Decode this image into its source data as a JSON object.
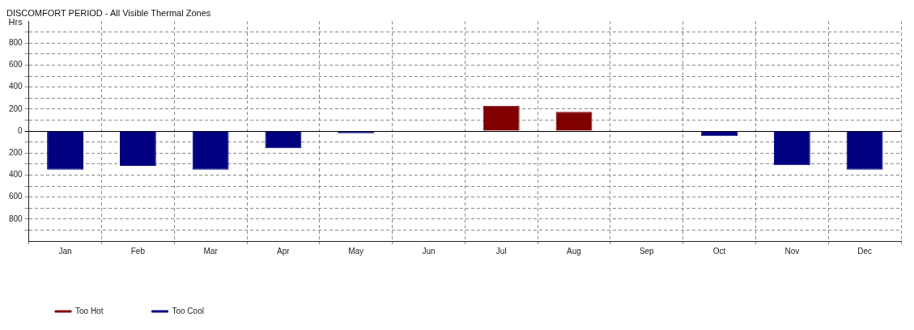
{
  "chart_data": {
    "type": "bar",
    "title": "DISCOMFORT PERIOD - All Visible Thermal Zones",
    "ylabel": "Hrs",
    "categories": [
      "Jan",
      "Feb",
      "Mar",
      "Apr",
      "May",
      "Jun",
      "Jul",
      "Aug",
      "Sep",
      "Oct",
      "Nov",
      "Dec"
    ],
    "series": [
      {
        "name": "Too Hot",
        "color": "#800000",
        "values": [
          null,
          null,
          null,
          null,
          null,
          null,
          230,
          175,
          null,
          null,
          null,
          null
        ]
      },
      {
        "name": "Too Cool",
        "color": "#000080",
        "values": [
          -350,
          -315,
          -350,
          -155,
          -20,
          null,
          null,
          null,
          null,
          -45,
          -310,
          -350
        ]
      }
    ],
    "stacked": true,
    "ylim": [
      -1000,
      1000
    ],
    "yticks": [
      {
        "value": -900,
        "label": null
      },
      {
        "value": -800,
        "label": "800"
      },
      {
        "value": -700,
        "label": null
      },
      {
        "value": -600,
        "label": "600"
      },
      {
        "value": -500,
        "label": null
      },
      {
        "value": -400,
        "label": "400"
      },
      {
        "value": -300,
        "label": null
      },
      {
        "value": -200,
        "label": "200"
      },
      {
        "value": -100,
        "label": null
      },
      0,
      {
        "value": 100,
        "label": null
      },
      {
        "value": 200,
        "label": "200"
      },
      {
        "value": 300,
        "label": null
      },
      {
        "value": 400,
        "label": "400"
      },
      {
        "value": 500,
        "label": null
      },
      {
        "value": 600,
        "label": "600"
      },
      {
        "value": 700,
        "label": null
      },
      {
        "value": 800,
        "label": "800"
      },
      {
        "value": 900,
        "label": null
      }
    ],
    "grid": true,
    "legend": "bottom left"
  }
}
